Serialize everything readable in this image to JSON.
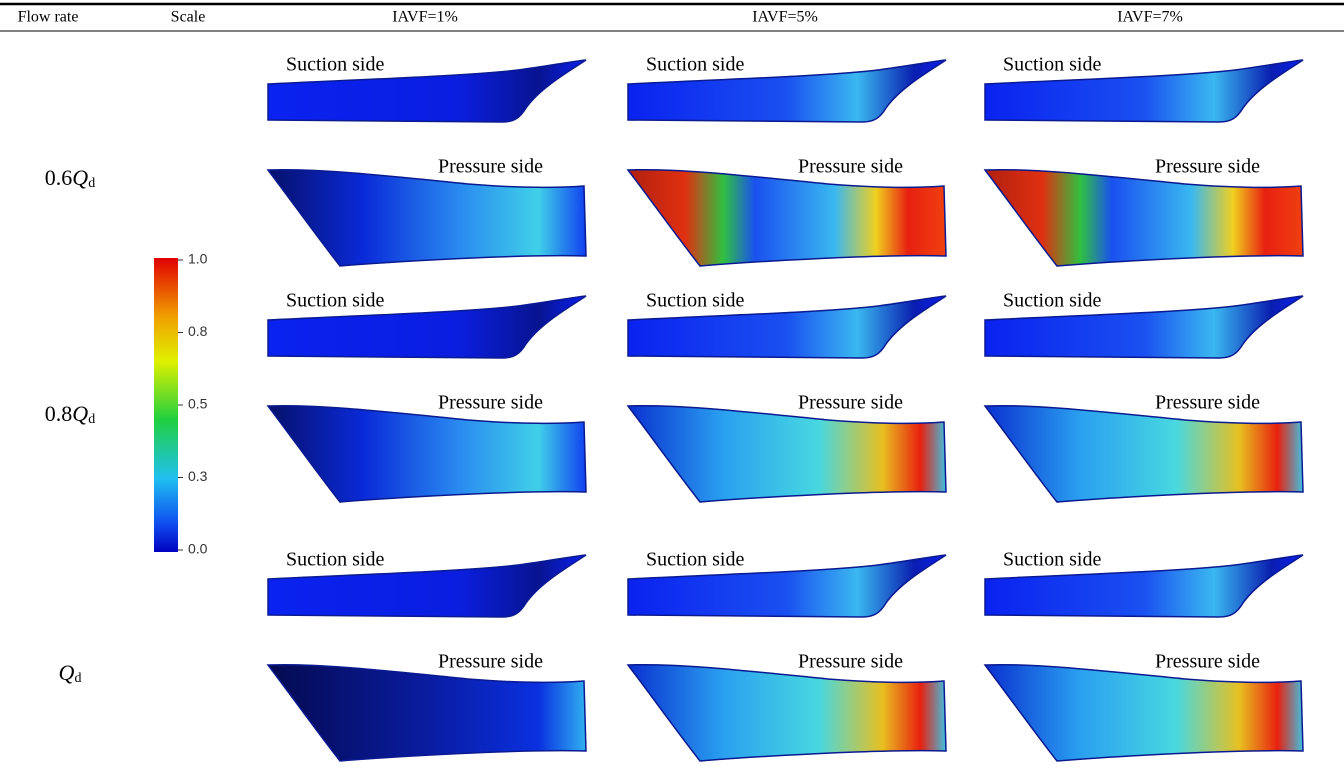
{
  "header": [
    "Flow rate",
    "Scale",
    "IAVF=1%",
    "IAVF=5%",
    "IAVF=7%"
  ],
  "scale": {
    "ticks": [
      "1.0",
      "0.8",
      "0.5",
      "0.3",
      "0.0"
    ]
  },
  "rows": [
    {
      "flow_rate": {
        "coefficient": "0.6",
        "symbol": "Q",
        "subscript": "d"
      },
      "cells": [
        {
          "suction_label": "Suction side",
          "pressure_label": "Pressure side"
        },
        {
          "suction_label": "Suction  side",
          "pressure_label": "Pressure side"
        },
        {
          "suction_label": "Suction  side",
          "pressure_label": "Pressure side"
        }
      ]
    },
    {
      "flow_rate": {
        "coefficient": "0.8",
        "symbol": "Q",
        "subscript": "d"
      },
      "cells": [
        {
          "suction_label": "Suction side",
          "pressure_label": "Pressure side"
        },
        {
          "suction_label": "Suction  side",
          "pressure_label": "Pressure side"
        },
        {
          "suction_label": "Suction  side",
          "pressure_label": "Pressure side"
        }
      ]
    },
    {
      "flow_rate": {
        "symbol": "Q",
        "subscript": "d"
      },
      "cells": [
        {
          "suction_label": "Suction side",
          "pressure_label": "Pressure side"
        },
        {
          "suction_label": "Suction  side",
          "pressure_label": "Pressure side"
        },
        {
          "suction_label": "Suction  side",
          "pressure_label": "Pressure side"
        }
      ]
    }
  ]
}
